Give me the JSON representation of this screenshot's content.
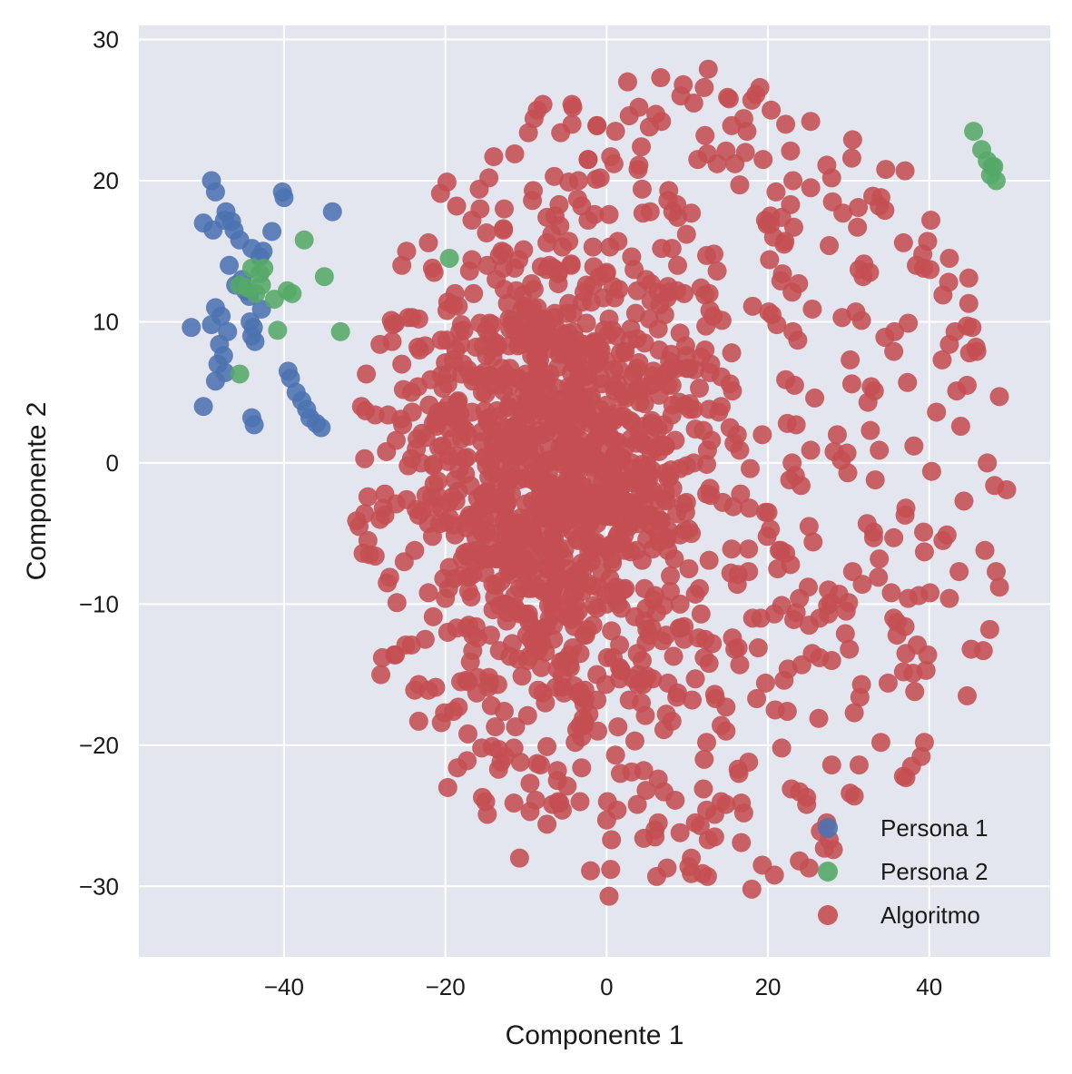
{
  "chart_data": {
    "type": "scatter",
    "title": "",
    "xlabel": "Componente 1",
    "ylabel": "Componente 2",
    "xlim": [
      -58,
      55
    ],
    "ylim": [
      -35,
      31
    ],
    "xticks": [
      -40,
      -20,
      0,
      20,
      40
    ],
    "yticks": [
      -30,
      -20,
      -10,
      0,
      10,
      20,
      30
    ],
    "grid": true,
    "legend_position": "bottom-right",
    "background": "#e4e6ef",
    "series": [
      {
        "name": "Persona 1",
        "color": "#4c72b0",
        "points": [
          [
            -49,
            20
          ],
          [
            -48.5,
            19.2
          ],
          [
            -47.2,
            17.8
          ],
          [
            -50,
            17
          ],
          [
            -48.8,
            16.5
          ],
          [
            -46.5,
            17.1
          ],
          [
            -45.5,
            15.8
          ],
          [
            -44,
            15.2
          ],
          [
            -43,
            14.6
          ],
          [
            -41.5,
            16.4
          ],
          [
            -42.6,
            15
          ],
          [
            -40.2,
            19.2
          ],
          [
            -40,
            18.8
          ],
          [
            -34,
            17.8
          ],
          [
            -46.8,
            14
          ],
          [
            -45.2,
            13
          ],
          [
            -44.8,
            12.2
          ],
          [
            -46,
            12.6
          ],
          [
            -44.3,
            11.8
          ],
          [
            -42.8,
            10.9
          ],
          [
            -48.5,
            11
          ],
          [
            -47.8,
            10.4
          ],
          [
            -51.5,
            9.6
          ],
          [
            -49,
            9.8
          ],
          [
            -47,
            9.3
          ],
          [
            -48,
            8.4
          ],
          [
            -47.5,
            7.6
          ],
          [
            -48.2,
            7
          ],
          [
            -47.3,
            6.4
          ],
          [
            -48.5,
            5.8
          ],
          [
            -44,
            9
          ],
          [
            -43.6,
            8.6
          ],
          [
            -44.2,
            10
          ],
          [
            -43.8,
            9.6
          ],
          [
            -39.5,
            6.5
          ],
          [
            -39.2,
            6
          ],
          [
            -38.5,
            5
          ],
          [
            -37.8,
            4.4
          ],
          [
            -37.2,
            3.8
          ],
          [
            -36.8,
            3.2
          ],
          [
            -36,
            2.8
          ],
          [
            -35.4,
            2.5
          ],
          [
            -44,
            3.2
          ],
          [
            -43.7,
            2.7
          ],
          [
            -50,
            4
          ],
          [
            -46.2,
            16.5
          ],
          [
            -47.4,
            17.2
          ]
        ]
      },
      {
        "name": "Persona 2",
        "color": "#55a868",
        "points": [
          [
            -44,
            13.8
          ],
          [
            -43,
            13.4
          ],
          [
            -42.8,
            12.6
          ],
          [
            -43.5,
            12
          ],
          [
            -44.5,
            12.4
          ],
          [
            -45.5,
            12.6
          ],
          [
            -42.5,
            13.8
          ],
          [
            -41.2,
            11.6
          ],
          [
            -39.6,
            12.2
          ],
          [
            -39,
            12
          ],
          [
            -37.5,
            15.8
          ],
          [
            -35,
            13.2
          ],
          [
            -33,
            9.3
          ],
          [
            -40.8,
            9.4
          ],
          [
            -45.5,
            6.3
          ],
          [
            -19.5,
            14.5
          ],
          [
            45.5,
            23.5
          ],
          [
            46.5,
            22.2
          ],
          [
            47.2,
            21.4
          ],
          [
            48,
            21
          ],
          [
            47.6,
            20.4
          ],
          [
            48.3,
            20
          ],
          [
            47.8,
            21
          ]
        ]
      },
      {
        "name": "Algoritmo",
        "color": "#c44e52",
        "points": []
      }
    ],
    "algoritmo_generator": {
      "count": 1600,
      "center": [
        -3,
        -1
      ],
      "note": "dense blob spanning x≈-32..50, y≈-31..28"
    }
  }
}
